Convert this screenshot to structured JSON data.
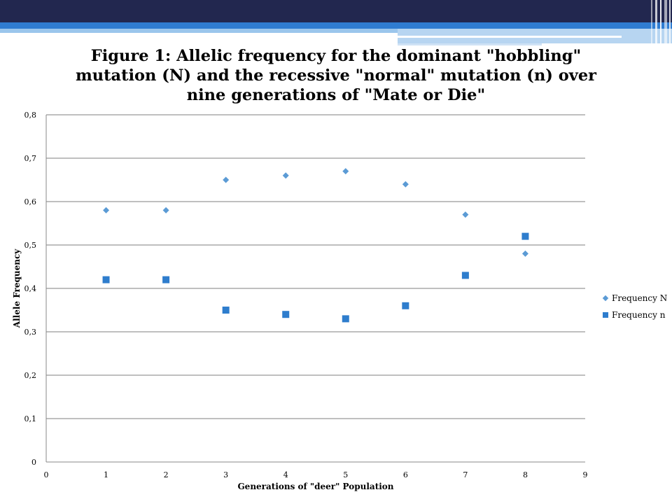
{
  "colors": {
    "band_dark": "#22274f",
    "band_blue": "#2f7cd1",
    "series_N": "#5b9bd5",
    "series_n": "#2e7dcd",
    "gridline": "#7f7f7f"
  },
  "chart_data": {
    "type": "scatter",
    "title": "Figure 1: Allelic frequency for the dominant \"hobbling\" mutation (N) and the recessive \"normal\" mutation (n) over nine generations of \"Mate or Die\"",
    "xlabel": "Generations of \"deer\" Population",
    "ylabel": "Allele Frequency",
    "xlim": [
      0,
      9
    ],
    "ylim": [
      0,
      0.8
    ],
    "x_ticks": [
      "0",
      "1",
      "2",
      "3",
      "4",
      "5",
      "6",
      "7",
      "8",
      "9"
    ],
    "y_ticks": [
      "0",
      "0,1",
      "0,2",
      "0,3",
      "0,4",
      "0,5",
      "0,6",
      "0,7",
      "0,8"
    ],
    "grid": "horizontal",
    "legend_position": "right",
    "series": [
      {
        "name": "Frequency N",
        "marker": "diamond",
        "color": "#5b9bd5",
        "x": [
          1,
          2,
          3,
          4,
          5,
          6,
          7,
          8
        ],
        "y": [
          0.58,
          0.58,
          0.65,
          0.66,
          0.67,
          0.64,
          0.57,
          0.48
        ]
      },
      {
        "name": "Frequency n",
        "marker": "square",
        "color": "#2e7dcd",
        "x": [
          1,
          2,
          3,
          4,
          5,
          6,
          7,
          8
        ],
        "y": [
          0.42,
          0.42,
          0.35,
          0.34,
          0.33,
          0.36,
          0.43,
          0.52
        ]
      }
    ]
  }
}
